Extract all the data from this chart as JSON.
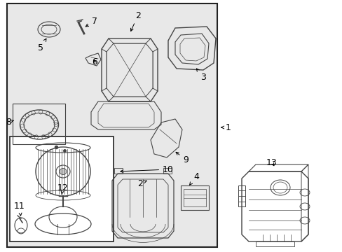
{
  "figsize": [
    4.89,
    3.6
  ],
  "dpi": 100,
  "bg_outer": "#ffffff",
  "bg_inner": "#e8e8e8",
  "lc": "#444444",
  "bc": "#222222"
}
